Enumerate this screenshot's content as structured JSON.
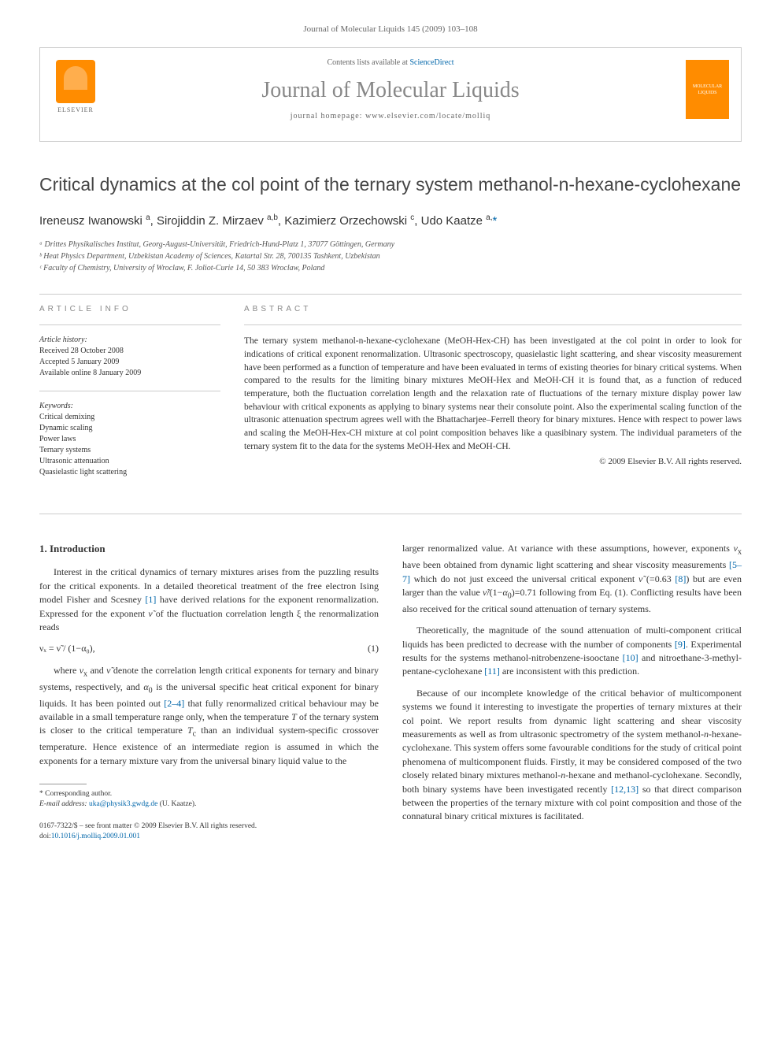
{
  "page_header": "Journal of Molecular Liquids 145 (2009) 103–108",
  "banner": {
    "contents_line_prefix": "Contents lists available at ",
    "contents_link": "ScienceDirect",
    "journal_name": "Journal of Molecular Liquids",
    "homepage_prefix": "journal homepage: ",
    "homepage_url": "www.elsevier.com/locate/molliq",
    "elsevier_label": "ELSEVIER",
    "cover_label_top": "MOLECULAR",
    "cover_label_bottom": "LIQUIDS"
  },
  "article": {
    "title": "Critical dynamics at the col point of the ternary system methanol-n-hexane-cyclohexane",
    "authors_html": "Ireneusz Iwanowski ᵃ, Sirojiddin Z. Mirzaev ᵃ,ᵇ, Kazimierz Orzechowski ᶜ, Udo Kaatze ᵃ,*",
    "affiliations": {
      "a": "ᵃ Drittes Physikalisches Institut, Georg-August-Universität, Friedrich-Hund-Platz 1, 37077 Göttingen, Germany",
      "b": "ᵇ Heat Physics Department, Uzbekistan Academy of Sciences, Katartal Str. 28, 700135 Tashkent, Uzbekistan",
      "c": "ᶜ Faculty of Chemistry, University of Wroclaw, F. Joliot-Curie 14, 50 383 Wroclaw, Poland"
    }
  },
  "info": {
    "heading": "ARTICLE INFO",
    "history_label": "Article history:",
    "received": "Received 28 October 2008",
    "accepted": "Accepted 5 January 2009",
    "online": "Available online 8 January 2009",
    "keywords_label": "Keywords:",
    "keywords": [
      "Critical demixing",
      "Dynamic scaling",
      "Power laws",
      "Ternary systems",
      "Ultrasonic attenuation",
      "Quasielastic light scattering"
    ]
  },
  "abstract": {
    "heading": "ABSTRACT",
    "text": "The ternary system methanol-n-hexane-cyclohexane (MeOH-Hex-CH) has been investigated at the col point in order to look for indications of critical exponent renormalization. Ultrasonic spectroscopy, quasielastic light scattering, and shear viscosity measurement have been performed as a function of temperature and have been evaluated in terms of existing theories for binary critical systems. When compared to the results for the limiting binary mixtures MeOH-Hex and MeOH-CH it is found that, as a function of reduced temperature, both the fluctuation correlation length and the relaxation rate of fluctuations of the ternary mixture display power law behaviour with critical exponents as applying to binary systems near their consolute point. Also the experimental scaling function of the ultrasonic attenuation spectrum agrees well with the Bhattacharjee–Ferrell theory for binary mixtures. Hence with respect to power laws and scaling the MeOH-Hex-CH mixture at col point composition behaves like a quasibinary system. The individual parameters of the ternary system fit to the data for the systems MeOH-Hex and MeOH-CH.",
    "copyright": "© 2009 Elsevier B.V. All rights reserved."
  },
  "body": {
    "section1_heading": "1. Introduction",
    "col1_p1": "Interest in the critical dynamics of ternary mixtures arises from the puzzling results for the critical exponents. In a detailed theoretical treatment of the free electron Ising model Fisher and Scesney [1] have derived relations for the exponent renormalization. Expressed for the exponent ν̃ of the fluctuation correlation length ξ the renormalization reads",
    "equation_lhs": "νₓ = ν̃ / (1−α₀),",
    "equation_num": "(1)",
    "col1_p2": "where νₓ and ν̃ denote the correlation length critical exponents for ternary and binary systems, respectively, and α₀ is the universal specific heat critical exponent for binary liquids. It has been pointed out [2–4] that fully renormalized critical behaviour may be available in a small temperature range only, when the temperature T of the ternary system is closer to the critical temperature Tc than an individual system-specific crossover temperature. Hence existence of an intermediate region is assumed in which the exponents for a ternary mixture vary from the universal binary liquid value to the",
    "col2_p1": "larger renormalized value. At variance with these assumptions, however, exponents νₓ have been obtained from dynamic light scattering and shear viscosity measurements [5–7] which do not just exceed the universal critical exponent ν̃ (=0.63 [8]) but are even larger than the value ν̃/(1−α₀)=0.71 following from Eq. (1). Conflicting results have been also received for the critical sound attenuation of ternary systems.",
    "col2_p2": "Theoretically, the magnitude of the sound attenuation of multi-component critical liquids has been predicted to decrease with the number of components [9]. Experimental results for the systems methanol-nitrobenzene-isooctane [10] and nitroethane-3-methyl-pentane-cyclohexane [11] are inconsistent with this prediction.",
    "col2_p3": "Because of our incomplete knowledge of the critical behavior of multicomponent systems we found it interesting to investigate the properties of ternary mixtures at their col point. We report results from dynamic light scattering and shear viscosity measurements as well as from ultrasonic spectrometry of the system methanol-n-hexane-cyclohexane. This system offers some favourable conditions for the study of critical point phenomena of multicomponent fluids. Firstly, it may be considered composed of the two closely related binary mixtures methanol-n-hexane and methanol-cyclohexane. Secondly, both binary systems have been investigated recently [12,13] so that direct comparison between the properties of the ternary mixture with col point composition and those of the connatural binary critical mixtures is facilitated."
  },
  "footnotes": {
    "corr": "* Corresponding author.",
    "email_label": "E-mail address: ",
    "email": "uka@physik3.gwdg.de",
    "email_who": " (U. Kaatze).",
    "front_matter": "0167-7322/$ – see front matter © 2009 Elsevier B.V. All rights reserved.",
    "doi": "doi:10.1016/j.molliq.2009.01.001"
  },
  "colors": {
    "link": "#0066aa",
    "text": "#333333",
    "muted": "#888888",
    "rule": "#cccccc",
    "elsevier_orange": "#ff8c00"
  },
  "typography": {
    "body_pt": 12,
    "title_pt": 23,
    "authors_pt": 15,
    "abstract_pt": 11.5,
    "info_pt": 10,
    "footnote_pt": 9.5
  }
}
